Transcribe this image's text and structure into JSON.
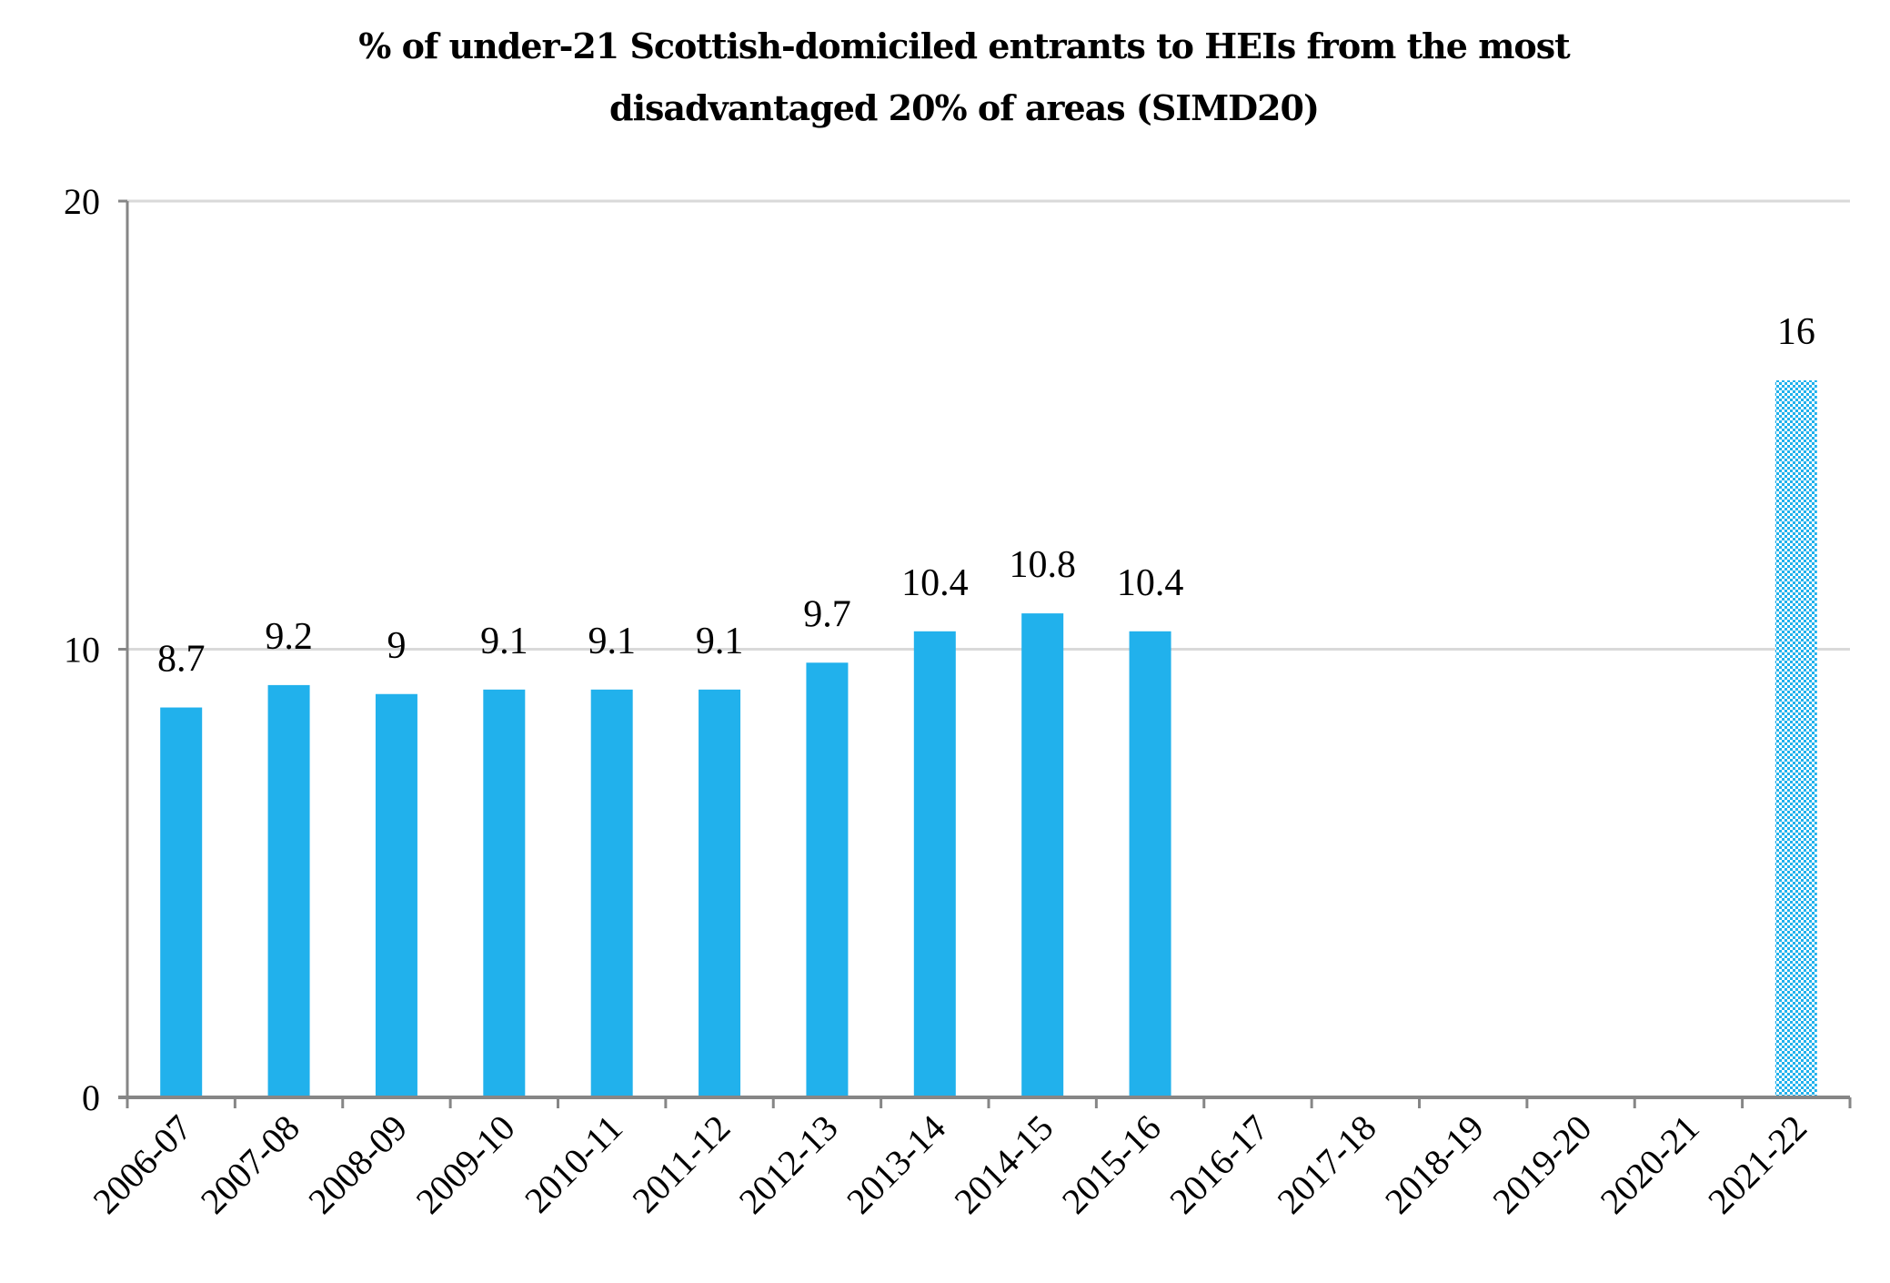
{
  "chart_data": {
    "type": "bar",
    "title_lines": [
      "% of under-21 Scottish-domiciled entrants to HEIs from the most",
      "disadvantaged 20% of areas (SIMD20)"
    ],
    "xlabel": "",
    "ylabel": "",
    "ylim": [
      0,
      20
    ],
    "yticks": [
      "0",
      "10",
      "20"
    ],
    "grid": true,
    "categories": [
      "2006-07",
      "2007-08",
      "2008-09",
      "2009-10",
      "2010-11",
      "2011-12",
      "2012-13",
      "2013-14",
      "2014-15",
      "2015-16",
      "2016-17",
      "2017-18",
      "2018-19",
      "2019-20",
      "2020-21",
      "2021-22"
    ],
    "values": [
      8.7,
      9.2,
      9,
      9.1,
      9.1,
      9.1,
      9.7,
      10.4,
      10.8,
      10.4,
      null,
      null,
      null,
      null,
      null,
      16
    ],
    "data_labels": [
      "8.7",
      "9.2",
      "9",
      "9.1",
      "9.1",
      "9.1",
      "9.7",
      "10.4",
      "10.8",
      "10.4",
      "",
      "",
      "",
      "",
      "",
      "16"
    ],
    "target_index": 15,
    "colors": {
      "bar": "#21b1ec",
      "grid": "#d9d9d9",
      "axis": "#868686"
    }
  }
}
